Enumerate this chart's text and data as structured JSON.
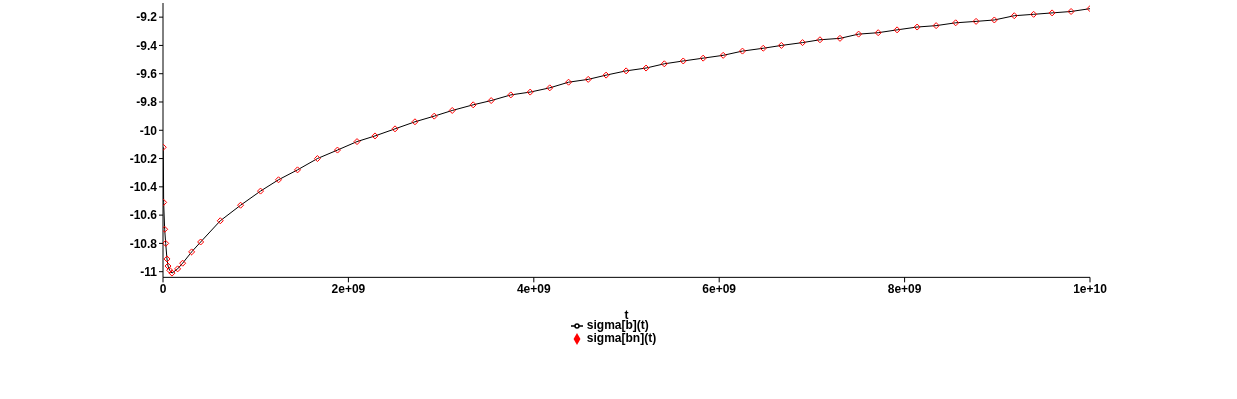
{
  "chart_data": {
    "type": "line",
    "xlabel": "t",
    "x": [
      3000000,
      7000000,
      18000000,
      29000000,
      43000000,
      54000000,
      72000000,
      97000000,
      158000000,
      212000000,
      309000000,
      406000000,
      618000000,
      837000000,
      1052000000,
      1246000000,
      1451000000,
      1666000000,
      1882000000,
      2093000000,
      2287000000,
      2503000000,
      2718000000,
      2926000000,
      3120000000,
      3346000000,
      3540000000,
      3752000000,
      3961000000,
      4172000000,
      4375000000,
      4587000000,
      4780000000,
      4996000000,
      5211000000,
      5408000000,
      5612000000,
      5827000000,
      6043000000,
      6251000000,
      6475000000,
      6671000000,
      6899000000,
      7087000000,
      7303000000,
      7504000000,
      7715000000,
      7919000000,
      8135000000,
      8340000000,
      8551000000,
      8771000000,
      8968000000,
      9183000000,
      9392000000,
      9591000000,
      9796000000,
      10000000000
    ],
    "series": [
      {
        "name": "sigma[bn](t)",
        "type": "scatter",
        "marker": "diamond",
        "color": "#ff0000",
        "values": [
          -10.12,
          -10.51,
          -10.7,
          -10.8,
          -10.91,
          -10.96,
          -10.99,
          -11.01,
          -10.98,
          -10.94,
          -10.86,
          -10.79,
          -10.64,
          -10.53,
          -10.43,
          -10.35,
          -10.28,
          -10.2,
          -10.14,
          -10.08,
          -10.04,
          -9.99,
          -9.94,
          -9.9,
          -9.86,
          -9.82,
          -9.79,
          -9.75,
          -9.73,
          -9.7,
          -9.66,
          -9.64,
          -9.61,
          -9.58,
          -9.56,
          -9.53,
          -9.51,
          -9.49,
          -9.47,
          -9.44,
          -9.42,
          -9.4,
          -9.38,
          -9.36,
          -9.35,
          -9.32,
          -9.31,
          -9.29,
          -9.27,
          -9.26,
          -9.24,
          -9.23,
          -9.22,
          -9.19,
          -9.18,
          -9.17,
          -9.16,
          -9.14
        ]
      },
      {
        "name": "sigma[b](t)",
        "type": "line",
        "marker": "none",
        "color": "#000000",
        "values": [
          -10.12,
          -10.51,
          -10.7,
          -10.8,
          -10.91,
          -10.96,
          -10.99,
          -11.01,
          -10.98,
          -10.94,
          -10.86,
          -10.79,
          -10.64,
          -10.53,
          -10.43,
          -10.35,
          -10.28,
          -10.2,
          -10.14,
          -10.08,
          -10.04,
          -9.99,
          -9.94,
          -9.9,
          -9.86,
          -9.82,
          -9.79,
          -9.75,
          -9.73,
          -9.7,
          -9.66,
          -9.64,
          -9.61,
          -9.58,
          -9.56,
          -9.53,
          -9.51,
          -9.49,
          -9.47,
          -9.44,
          -9.42,
          -9.4,
          -9.38,
          -9.36,
          -9.35,
          -9.32,
          -9.31,
          -9.29,
          -9.27,
          -9.26,
          -9.24,
          -9.23,
          -9.22,
          -9.19,
          -9.18,
          -9.17,
          -9.16,
          -9.14
        ]
      }
    ],
    "xlim": [
      0,
      10000000000
    ],
    "xticks": [
      0,
      {
        "value": 2000000000,
        "label": "2e+09"
      },
      {
        "value": 4000000000,
        "label": "4e+09"
      },
      {
        "value": 6000000000,
        "label": "6e+09"
      },
      {
        "value": 8000000000,
        "label": "8e+09"
      },
      {
        "value": 10000000000,
        "label": "1e+10"
      }
    ],
    "ylim": [
      -11.04,
      -9.1
    ],
    "yticks": [
      -11,
      -10.8,
      -10.6,
      -10.4,
      -10.2,
      -10,
      -9.8,
      -9.6,
      -9.4,
      -9.2
    ],
    "legend": "bottom"
  }
}
